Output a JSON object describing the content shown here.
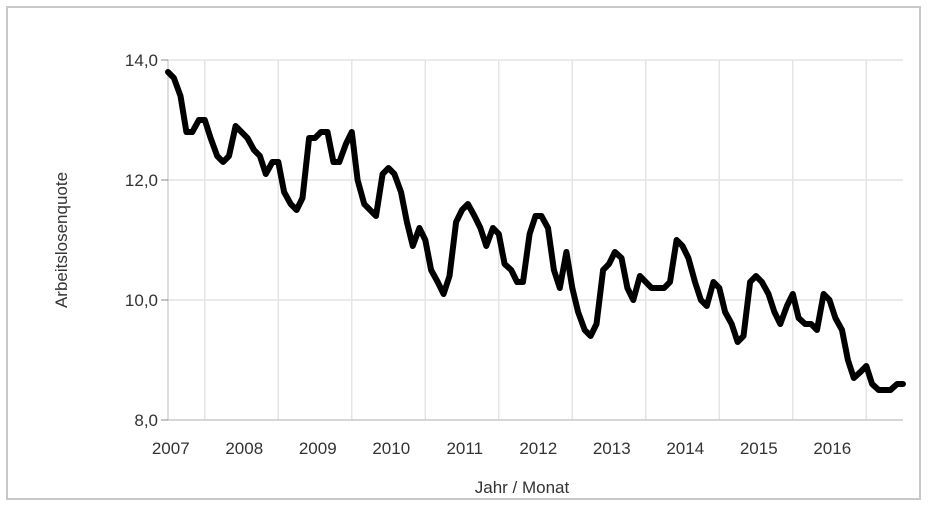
{
  "chart_data": {
    "type": "line",
    "xlabel": "Jahr / Monat",
    "ylabel": "Arbeitslosenquote",
    "ylim": [
      8.0,
      14.0
    ],
    "yticks": [
      "8,0",
      "10,0",
      "12,0",
      "14,0"
    ],
    "ytick_values": [
      8,
      10,
      12,
      14
    ],
    "xlim": [
      2006.5,
      2016.5
    ],
    "xtick_labels": [
      "2007",
      "2008",
      "2009",
      "2010",
      "2011",
      "2012",
      "2013",
      "2014",
      "2015",
      "2016"
    ],
    "xtick_positions": [
      2007,
      2008,
      2009,
      2010,
      2011,
      2012,
      2013,
      2014,
      2015,
      2016
    ],
    "year_boundaries": [
      2007.0,
      2008.0,
      2009.0,
      2010.0,
      2011.0,
      2012.0,
      2013.0,
      2014.0,
      2015.0,
      2016.0
    ],
    "grid": true,
    "line_color": "#000000",
    "series": [
      {
        "x": [
          2006.5,
          2006.58,
          2006.67,
          2006.75,
          2006.83,
          2006.92,
          2007.0,
          2007.08,
          2007.17,
          2007.25,
          2007.33,
          2007.42,
          2007.5,
          2007.58,
          2007.67,
          2007.75,
          2007.83,
          2007.92,
          2008.0,
          2008.08,
          2008.17,
          2008.25,
          2008.33,
          2008.42,
          2008.5,
          2008.58,
          2008.67,
          2008.75,
          2008.83,
          2008.92,
          2009.0,
          2009.08,
          2009.17,
          2009.25,
          2009.33,
          2009.42,
          2009.5,
          2009.58,
          2009.67,
          2009.75,
          2009.83,
          2009.92,
          2010.0,
          2010.08,
          2010.17,
          2010.25,
          2010.33,
          2010.42,
          2010.5,
          2010.58,
          2010.67,
          2010.75,
          2010.83,
          2010.92,
          2011.0,
          2011.08,
          2011.17,
          2011.25,
          2011.33,
          2011.42,
          2011.5,
          2011.58,
          2011.67,
          2011.75,
          2011.83,
          2011.92,
          2012.0,
          2012.08,
          2012.17,
          2012.25,
          2012.33,
          2012.42,
          2012.5,
          2012.58,
          2012.67,
          2012.75,
          2012.83,
          2012.92,
          2013.0,
          2013.08,
          2013.17,
          2013.25,
          2013.33,
          2013.42,
          2013.5,
          2013.58,
          2013.67,
          2013.75,
          2013.83,
          2013.92,
          2014.0,
          2014.08,
          2014.17,
          2014.25,
          2014.33,
          2014.42,
          2014.5,
          2014.58,
          2014.67,
          2014.75,
          2014.83,
          2014.92,
          2015.0,
          2015.08,
          2015.17,
          2015.25,
          2015.33,
          2015.42,
          2015.5,
          2015.58,
          2015.67,
          2015.75,
          2015.83,
          2015.92,
          2016.0,
          2016.08,
          2016.17,
          2016.25,
          2016.33,
          2016.42,
          2016.5
        ],
        "y": [
          13.8,
          13.7,
          13.4,
          12.8,
          12.8,
          13.0,
          13.0,
          12.7,
          12.4,
          12.3,
          12.4,
          12.9,
          12.8,
          12.7,
          12.5,
          12.4,
          12.1,
          12.3,
          12.3,
          11.8,
          11.6,
          11.5,
          11.7,
          12.7,
          12.7,
          12.8,
          12.8,
          12.3,
          12.3,
          12.6,
          12.8,
          12.0,
          11.6,
          11.5,
          11.4,
          12.1,
          12.2,
          12.1,
          11.8,
          11.3,
          10.9,
          11.2,
          11.0,
          10.5,
          10.3,
          10.1,
          10.4,
          11.3,
          11.5,
          11.6,
          11.4,
          11.2,
          10.9,
          11.2,
          11.1,
          10.6,
          10.5,
          10.3,
          10.3,
          11.1,
          11.4,
          11.4,
          11.2,
          10.5,
          10.2,
          10.8,
          10.2,
          9.8,
          9.5,
          9.4,
          9.6,
          10.5,
          10.6,
          10.8,
          10.7,
          10.2,
          10.0,
          10.4,
          10.3,
          10.2,
          10.2,
          10.2,
          10.3,
          11.0,
          10.9,
          10.7,
          10.3,
          10.0,
          9.9,
          10.3,
          10.2,
          9.8,
          9.6,
          9.3,
          9.4,
          10.3,
          10.4,
          10.3,
          10.1,
          9.8,
          9.6,
          9.9,
          10.1,
          9.7,
          9.6,
          9.6,
          9.5,
          10.1,
          10.0,
          9.7,
          9.5,
          9.0,
          8.7,
          8.8,
          8.9,
          8.6,
          8.5,
          8.5,
          8.5,
          8.6,
          8.6
        ]
      }
    ]
  }
}
